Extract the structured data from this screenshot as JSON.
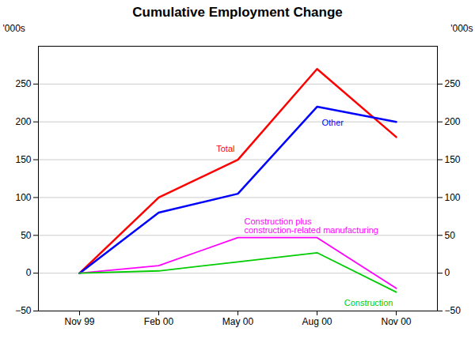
{
  "chart_data": {
    "type": "line",
    "title": "Cumulative Employment Change",
    "ylabel": "'000s",
    "y2label": "'000s",
    "categories": [
      "Nov 99",
      "Feb 00",
      "May 00",
      "Aug 00",
      "Nov 00"
    ],
    "series": [
      {
        "name": "Total",
        "color": "red",
        "values": [
          0,
          100,
          150,
          270,
          180
        ]
      },
      {
        "name": "Other",
        "color": "blue",
        "values": [
          0,
          80,
          105,
          220,
          200
        ]
      },
      {
        "name": "Construction plus\nconstruction-related manufacturing",
        "color": "#ff00ff",
        "values": [
          0,
          10,
          47,
          47,
          -20
        ]
      },
      {
        "name": "Construction",
        "color": "#00cc00",
        "values": [
          0,
          3,
          15,
          27,
          -25
        ]
      }
    ],
    "ylim": [
      -50,
      300
    ],
    "yticks": [
      -50,
      0,
      50,
      100,
      150,
      200,
      250
    ],
    "y2lim": [
      -50,
      300
    ],
    "y2ticks": [
      -50,
      0,
      50,
      100,
      150,
      200,
      250
    ],
    "grid": true
  }
}
